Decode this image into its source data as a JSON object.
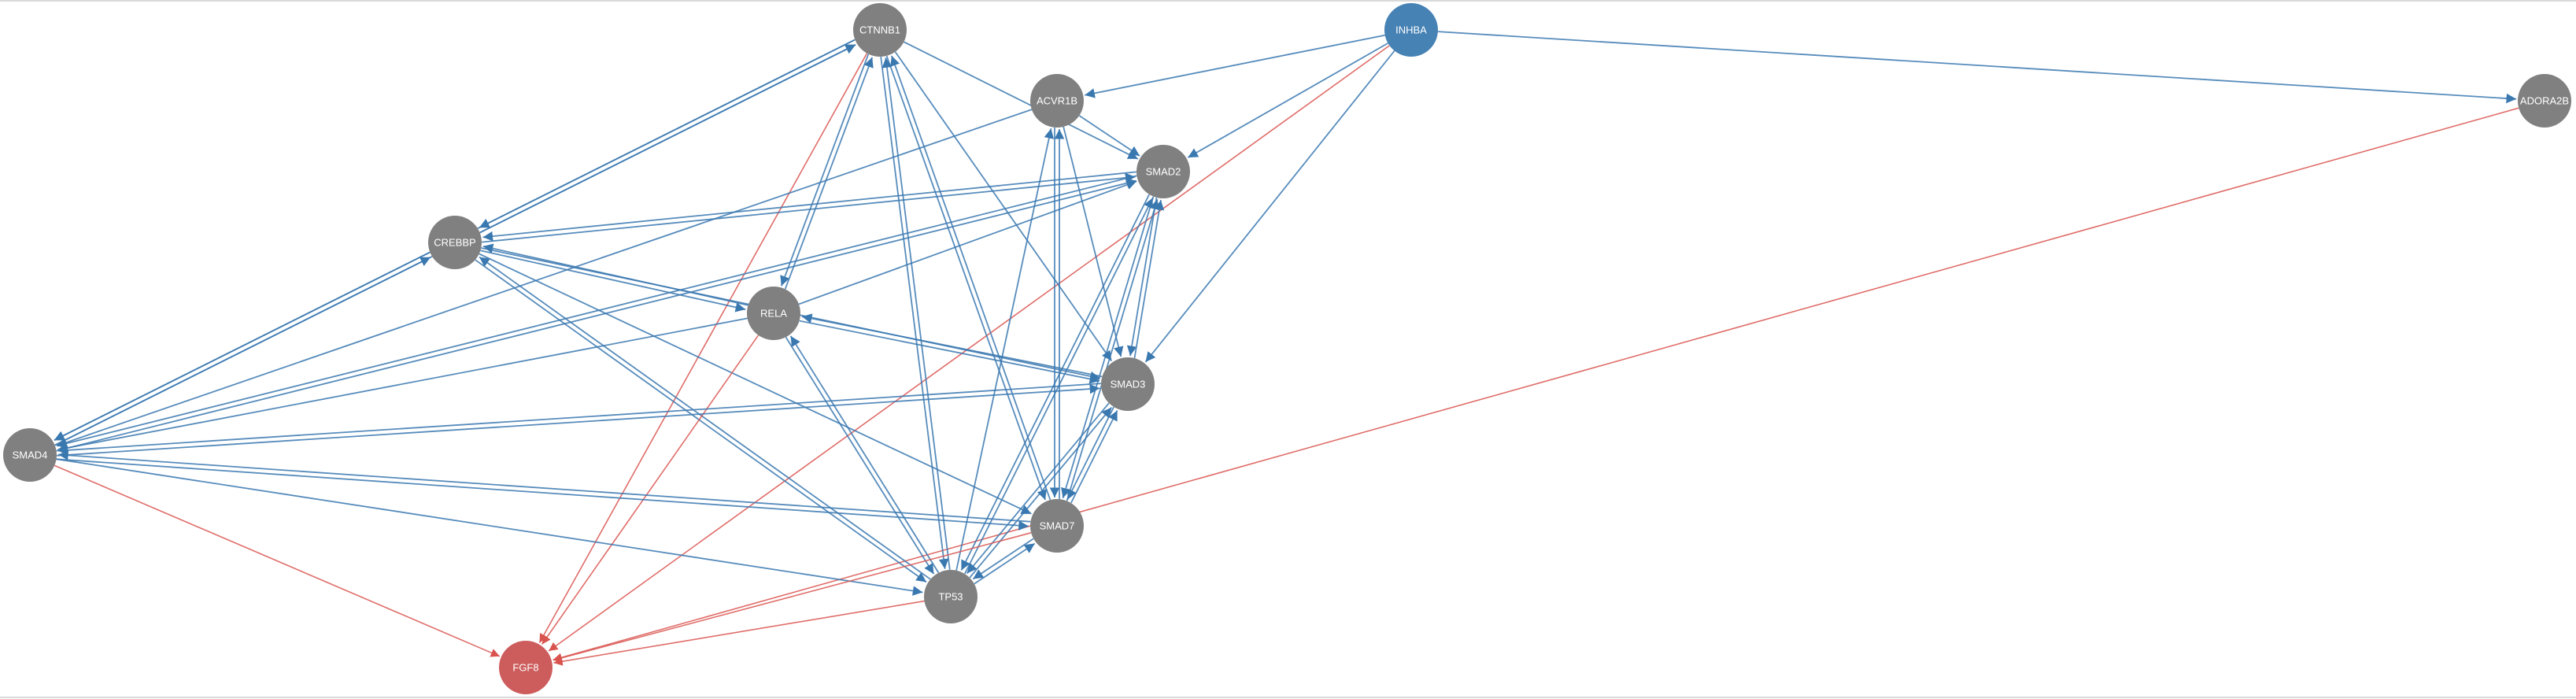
{
  "graph": {
    "colors": {
      "node_default": "#808080",
      "node_source": "#4682b4",
      "node_target": "#cd5c5c",
      "edge_blue": "#3a78b0",
      "edge_red": "#d9534f",
      "label": "#ffffff"
    },
    "nodes": [
      {
        "id": "CTNNB1",
        "label": "CTNNB1",
        "color": "node_default"
      },
      {
        "id": "INHBA",
        "label": "INHBA",
        "color": "node_source"
      },
      {
        "id": "ACVR1B",
        "label": "ACVR1B",
        "color": "node_default"
      },
      {
        "id": "ADORA2B",
        "label": "ADORA2B",
        "color": "node_default"
      },
      {
        "id": "SMAD2",
        "label": "SMAD2",
        "color": "node_default"
      },
      {
        "id": "CREBBP",
        "label": "CREBBP",
        "color": "node_default"
      },
      {
        "id": "RELA",
        "label": "RELA",
        "color": "node_default"
      },
      {
        "id": "SMAD3",
        "label": "SMAD3",
        "color": "node_default"
      },
      {
        "id": "SMAD4",
        "label": "SMAD4",
        "color": "node_default"
      },
      {
        "id": "SMAD7",
        "label": "SMAD7",
        "color": "node_default"
      },
      {
        "id": "TP53",
        "label": "TP53",
        "color": "node_default"
      },
      {
        "id": "FGF8",
        "label": "FGF8",
        "color": "node_target"
      }
    ],
    "edges": [
      {
        "s": "INHBA",
        "t": "ACVR1B",
        "c": "edge_blue"
      },
      {
        "s": "INHBA",
        "t": "SMAD2",
        "c": "edge_blue"
      },
      {
        "s": "INHBA",
        "t": "SMAD3",
        "c": "edge_blue"
      },
      {
        "s": "INHBA",
        "t": "ADORA2B",
        "c": "edge_blue"
      },
      {
        "s": "INHBA",
        "t": "FGF8",
        "c": "edge_red"
      },
      {
        "s": "ADORA2B",
        "t": "FGF8",
        "c": "edge_red"
      },
      {
        "s": "CTNNB1",
        "t": "CREBBP",
        "c": "edge_blue"
      },
      {
        "s": "CREBBP",
        "t": "CTNNB1",
        "c": "edge_blue"
      },
      {
        "s": "CTNNB1",
        "t": "SMAD4",
        "c": "edge_blue"
      },
      {
        "s": "SMAD4",
        "t": "CTNNB1",
        "c": "edge_blue"
      },
      {
        "s": "CTNNB1",
        "t": "RELA",
        "c": "edge_blue"
      },
      {
        "s": "RELA",
        "t": "CTNNB1",
        "c": "edge_blue"
      },
      {
        "s": "CTNNB1",
        "t": "SMAD2",
        "c": "edge_blue"
      },
      {
        "s": "CTNNB1",
        "t": "SMAD3",
        "c": "edge_blue"
      },
      {
        "s": "CTNNB1",
        "t": "SMAD7",
        "c": "edge_blue"
      },
      {
        "s": "SMAD7",
        "t": "CTNNB1",
        "c": "edge_blue"
      },
      {
        "s": "CTNNB1",
        "t": "TP53",
        "c": "edge_blue"
      },
      {
        "s": "TP53",
        "t": "CTNNB1",
        "c": "edge_blue"
      },
      {
        "s": "CTNNB1",
        "t": "FGF8",
        "c": "edge_red"
      },
      {
        "s": "ACVR1B",
        "t": "SMAD2",
        "c": "edge_blue"
      },
      {
        "s": "ACVR1B",
        "t": "SMAD3",
        "c": "edge_blue"
      },
      {
        "s": "ACVR1B",
        "t": "SMAD7",
        "c": "edge_blue"
      },
      {
        "s": "SMAD7",
        "t": "ACVR1B",
        "c": "edge_blue"
      },
      {
        "s": "TP53",
        "t": "ACVR1B",
        "c": "edge_blue"
      },
      {
        "s": "ACVR1B",
        "t": "SMAD4",
        "c": "edge_blue"
      },
      {
        "s": "SMAD2",
        "t": "CREBBP",
        "c": "edge_blue"
      },
      {
        "s": "CREBBP",
        "t": "SMAD2",
        "c": "edge_blue"
      },
      {
        "s": "SMAD2",
        "t": "SMAD4",
        "c": "edge_blue"
      },
      {
        "s": "SMAD4",
        "t": "SMAD2",
        "c": "edge_blue"
      },
      {
        "s": "SMAD2",
        "t": "SMAD3",
        "c": "edge_blue"
      },
      {
        "s": "SMAD3",
        "t": "SMAD2",
        "c": "edge_blue"
      },
      {
        "s": "SMAD2",
        "t": "SMAD7",
        "c": "edge_blue"
      },
      {
        "s": "SMAD7",
        "t": "SMAD2",
        "c": "edge_blue"
      },
      {
        "s": "SMAD2",
        "t": "TP53",
        "c": "edge_blue"
      },
      {
        "s": "TP53",
        "t": "SMAD2",
        "c": "edge_blue"
      },
      {
        "s": "RELA",
        "t": "SMAD2",
        "c": "edge_blue"
      },
      {
        "s": "CREBBP",
        "t": "RELA",
        "c": "edge_blue"
      },
      {
        "s": "RELA",
        "t": "CREBBP",
        "c": "edge_blue"
      },
      {
        "s": "CREBBP",
        "t": "SMAD4",
        "c": "edge_blue"
      },
      {
        "s": "SMAD4",
        "t": "CREBBP",
        "c": "edge_blue"
      },
      {
        "s": "CREBBP",
        "t": "SMAD3",
        "c": "edge_blue"
      },
      {
        "s": "CREBBP",
        "t": "SMAD7",
        "c": "edge_blue"
      },
      {
        "s": "CREBBP",
        "t": "TP53",
        "c": "edge_blue"
      },
      {
        "s": "TP53",
        "t": "CREBBP",
        "c": "edge_blue"
      },
      {
        "s": "RELA",
        "t": "SMAD3",
        "c": "edge_blue"
      },
      {
        "s": "SMAD3",
        "t": "RELA",
        "c": "edge_blue"
      },
      {
        "s": "RELA",
        "t": "SMAD4",
        "c": "edge_blue"
      },
      {
        "s": "RELA",
        "t": "TP53",
        "c": "edge_blue"
      },
      {
        "s": "TP53",
        "t": "RELA",
        "c": "edge_blue"
      },
      {
        "s": "RELA",
        "t": "FGF8",
        "c": "edge_red"
      },
      {
        "s": "SMAD3",
        "t": "SMAD4",
        "c": "edge_blue"
      },
      {
        "s": "SMAD4",
        "t": "SMAD3",
        "c": "edge_blue"
      },
      {
        "s": "SMAD3",
        "t": "SMAD7",
        "c": "edge_blue"
      },
      {
        "s": "SMAD7",
        "t": "SMAD3",
        "c": "edge_blue"
      },
      {
        "s": "SMAD3",
        "t": "TP53",
        "c": "edge_blue"
      },
      {
        "s": "TP53",
        "t": "SMAD3",
        "c": "edge_blue"
      },
      {
        "s": "SMAD4",
        "t": "SMAD7",
        "c": "edge_blue"
      },
      {
        "s": "SMAD7",
        "t": "SMAD4",
        "c": "edge_blue"
      },
      {
        "s": "SMAD4",
        "t": "TP53",
        "c": "edge_blue"
      },
      {
        "s": "SMAD4",
        "t": "FGF8",
        "c": "edge_red"
      },
      {
        "s": "SMAD7",
        "t": "TP53",
        "c": "edge_blue"
      },
      {
        "s": "TP53",
        "t": "SMAD7",
        "c": "edge_blue"
      },
      {
        "s": "SMAD7",
        "t": "FGF8",
        "c": "edge_red"
      },
      {
        "s": "TP53",
        "t": "FGF8",
        "c": "edge_red"
      }
    ]
  }
}
